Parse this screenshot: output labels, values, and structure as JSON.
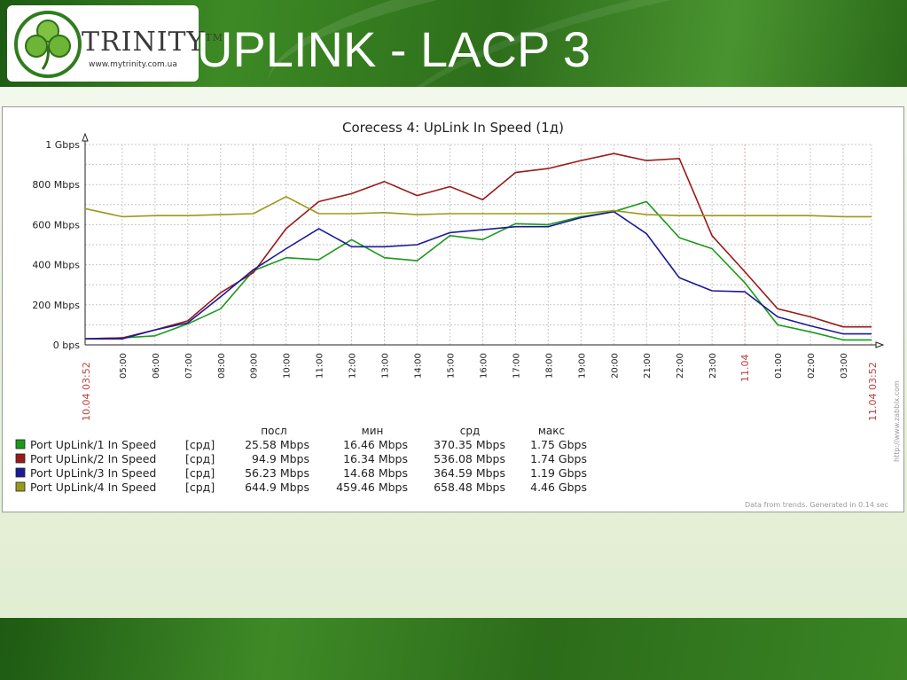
{
  "slide": {
    "title": "UPLINK - LACP 3",
    "logo": {
      "name": "TRINITY",
      "trademark": "TM",
      "url": "www.mytrinity.com.ua"
    }
  },
  "colors": {
    "header_green": "#2d6e1b",
    "series_1": "#1a9a1a",
    "series_2": "#991a1a",
    "series_3": "#1a1a99",
    "series_4": "#9a9a1a",
    "date_label": "#c04040"
  },
  "chart_data": {
    "type": "line",
    "title": "Corecess 4: UpLink In Speed  (1д)",
    "ylabel": "",
    "xlabel": "",
    "ylim": [
      0,
      1000
    ],
    "y_unit": "Mbps",
    "y_ticks": [
      {
        "value": 0,
        "label": "0 bps"
      },
      {
        "value": 200,
        "label": "200 Mbps"
      },
      {
        "value": 400,
        "label": "400 Mbps"
      },
      {
        "value": 600,
        "label": "600 Mbps"
      },
      {
        "value": 800,
        "label": "800 Mbps"
      },
      {
        "value": 1000,
        "label": "1 Gbps"
      }
    ],
    "x_start_label": "10.04 03:52",
    "x_end_label": "11.04 03:52",
    "x_day_label": "11.04",
    "x": [
      "03:52",
      "05:00",
      "06:00",
      "07:00",
      "08:00",
      "09:00",
      "10:00",
      "11:00",
      "12:00",
      "13:00",
      "14:00",
      "15:00",
      "16:00",
      "17:00",
      "18:00",
      "19:00",
      "20:00",
      "21:00",
      "22:00",
      "23:00",
      "00:00",
      "01:00",
      "02:00",
      "03:00",
      "03:52"
    ],
    "x_hour_ticks": [
      "05:00",
      "06:00",
      "07:00",
      "08:00",
      "09:00",
      "10:00",
      "11:00",
      "12:00",
      "13:00",
      "14:00",
      "15:00",
      "16:00",
      "17:00",
      "18:00",
      "19:00",
      "20:00",
      "21:00",
      "22:00",
      "23:00",
      "01:00",
      "02:00",
      "03:00"
    ],
    "series": [
      {
        "name": "Port UpLink/1 In Speed",
        "values": [
          30,
          35,
          45,
          105,
          180,
          370,
          435,
          425,
          525,
          435,
          420,
          545,
          525,
          605,
          600,
          640,
          665,
          715,
          535,
          480,
          310,
          100,
          65,
          25,
          25
        ]
      },
      {
        "name": "Port UpLink/2 In Speed",
        "values": [
          30,
          35,
          75,
          120,
          260,
          360,
          580,
          715,
          755,
          815,
          745,
          790,
          725,
          860,
          880,
          920,
          955,
          920,
          930,
          545,
          365,
          180,
          140,
          90,
          90
        ]
      },
      {
        "name": "Port UpLink/3 In Speed",
        "values": [
          30,
          30,
          75,
          110,
          240,
          375,
          480,
          580,
          490,
          490,
          500,
          560,
          575,
          590,
          590,
          635,
          665,
          555,
          335,
          270,
          265,
          140,
          95,
          55,
          55
        ]
      },
      {
        "name": "Port UpLink/4 In Speed",
        "values": [
          680,
          640,
          645,
          645,
          650,
          655,
          740,
          655,
          655,
          660,
          650,
          655,
          655,
          655,
          655,
          655,
          670,
          650,
          645,
          645,
          645,
          645,
          645,
          640,
          640
        ]
      }
    ],
    "legend": {
      "columns": [
        "посл",
        "мин",
        "срд",
        "макс"
      ],
      "tag": "[срд]",
      "rows": [
        {
          "name": "Port UpLink/1 In Speed",
          "last": "25.58 Mbps",
          "min": "16.46 Mbps",
          "avg": "370.35 Mbps",
          "max": "1.75 Gbps"
        },
        {
          "name": "Port UpLink/2 In Speed",
          "last": "94.9 Mbps",
          "min": "16.34 Mbps",
          "avg": "536.08 Mbps",
          "max": "1.74 Gbps"
        },
        {
          "name": "Port UpLink/3 In Speed",
          "last": "56.23 Mbps",
          "min": "14.68 Mbps",
          "avg": "364.59 Mbps",
          "max": "1.19 Gbps"
        },
        {
          "name": "Port UpLink/4 In Speed",
          "last": "644.9 Mbps",
          "min": "459.46 Mbps",
          "avg": "658.48 Mbps",
          "max": "4.46 Gbps"
        }
      ]
    },
    "watermark": "http://www.zabbix.com",
    "footer_note": "Data from trends. Generated in 0.14 sec",
    "grid": true
  }
}
